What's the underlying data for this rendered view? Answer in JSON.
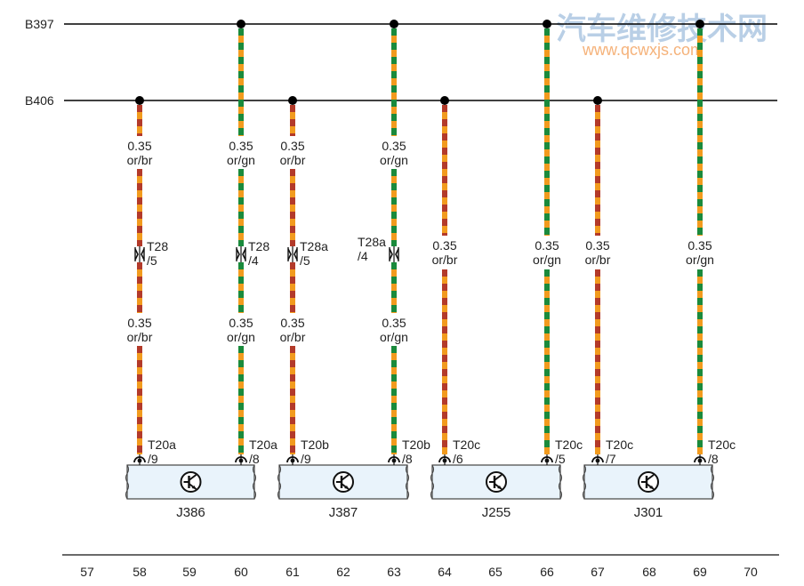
{
  "watermark": {
    "title": "汽车维修技术网",
    "url": "www.qcwxjs.com"
  },
  "buses": [
    {
      "id": "B397",
      "label": "B397"
    },
    {
      "id": "B406",
      "label": "B406"
    }
  ],
  "colors": {
    "or": "#f29b1e",
    "br": "#b33a2a",
    "gn": "#1a8a3c",
    "line": "#000000",
    "connector_fill": "#e9f3fb",
    "watermark_title": "#b9cfe6",
    "watermark_url": "#f5b27a"
  },
  "wires": [
    {
      "id": "w58",
      "column": "58",
      "bus": "B406",
      "color2": "br",
      "segments": [
        {
          "label1": "0.35",
          "label2": "or/br"
        },
        {
          "label1": "0.35",
          "label2": "or/br"
        }
      ],
      "inline_connector": {
        "name": "T28",
        "pin": "/5"
      },
      "terminal": {
        "name": "T20a",
        "pin": "/9"
      }
    },
    {
      "id": "w60",
      "column": "60",
      "bus": "B397",
      "color2": "gn",
      "segments": [
        {
          "label1": "0.35",
          "label2": "or/gn"
        },
        {
          "label1": "0.35",
          "label2": "or/gn"
        }
      ],
      "inline_connector": {
        "name": "T28",
        "pin": "/4"
      },
      "terminal": {
        "name": "T20a",
        "pin": "/8"
      }
    },
    {
      "id": "w61",
      "column": "61",
      "bus": "B406",
      "color2": "br",
      "segments": [
        {
          "label1": "0.35",
          "label2": "or/br"
        },
        {
          "label1": "0.35",
          "label2": "or/br"
        }
      ],
      "inline_connector": {
        "name": "T28a",
        "pin": "/5"
      },
      "terminal": {
        "name": "T20b",
        "pin": "/9"
      }
    },
    {
      "id": "w63",
      "column": "63",
      "bus": "B397",
      "color2": "gn",
      "segments": [
        {
          "label1": "0.35",
          "label2": "or/gn"
        },
        {
          "label1": "0.35",
          "label2": "or/gn"
        }
      ],
      "inline_connector": {
        "name": "T28a",
        "pin": "/4"
      },
      "terminal": {
        "name": "T20b",
        "pin": "/8"
      }
    },
    {
      "id": "w64",
      "column": "64",
      "bus": "B406",
      "color2": "br",
      "segments": [
        {
          "label1": "0.35",
          "label2": "or/br"
        }
      ],
      "terminal": {
        "name": "T20c",
        "pin": "/6"
      }
    },
    {
      "id": "w66",
      "column": "66",
      "bus": "B397",
      "color2": "gn",
      "segments": [
        {
          "label1": "0.35",
          "label2": "or/gn"
        }
      ],
      "terminal": {
        "name": "T20c",
        "pin": "/5"
      }
    },
    {
      "id": "w67",
      "column": "67",
      "bus": "B406",
      "color2": "br",
      "segments": [
        {
          "label1": "0.35",
          "label2": "or/br"
        }
      ],
      "terminal": {
        "name": "T20c",
        "pin": "/7"
      }
    },
    {
      "id": "w69",
      "column": "69",
      "bus": "B397",
      "color2": "gn",
      "segments": [
        {
          "label1": "0.35",
          "label2": "or/gn"
        }
      ],
      "terminal": {
        "name": "T20c",
        "pin": "/8"
      }
    }
  ],
  "components": [
    {
      "id": "J386",
      "label": "J386",
      "symbol": "transistor-icon"
    },
    {
      "id": "J387",
      "label": "J387",
      "symbol": "transistor-icon"
    },
    {
      "id": "J255",
      "label": "J255",
      "symbol": "transistor-icon"
    },
    {
      "id": "J301",
      "label": "J301",
      "symbol": "transistor-icon"
    }
  ],
  "ruler": [
    "57",
    "58",
    "59",
    "60",
    "61",
    "62",
    "63",
    "64",
    "65",
    "66",
    "67",
    "68",
    "69",
    "70"
  ]
}
